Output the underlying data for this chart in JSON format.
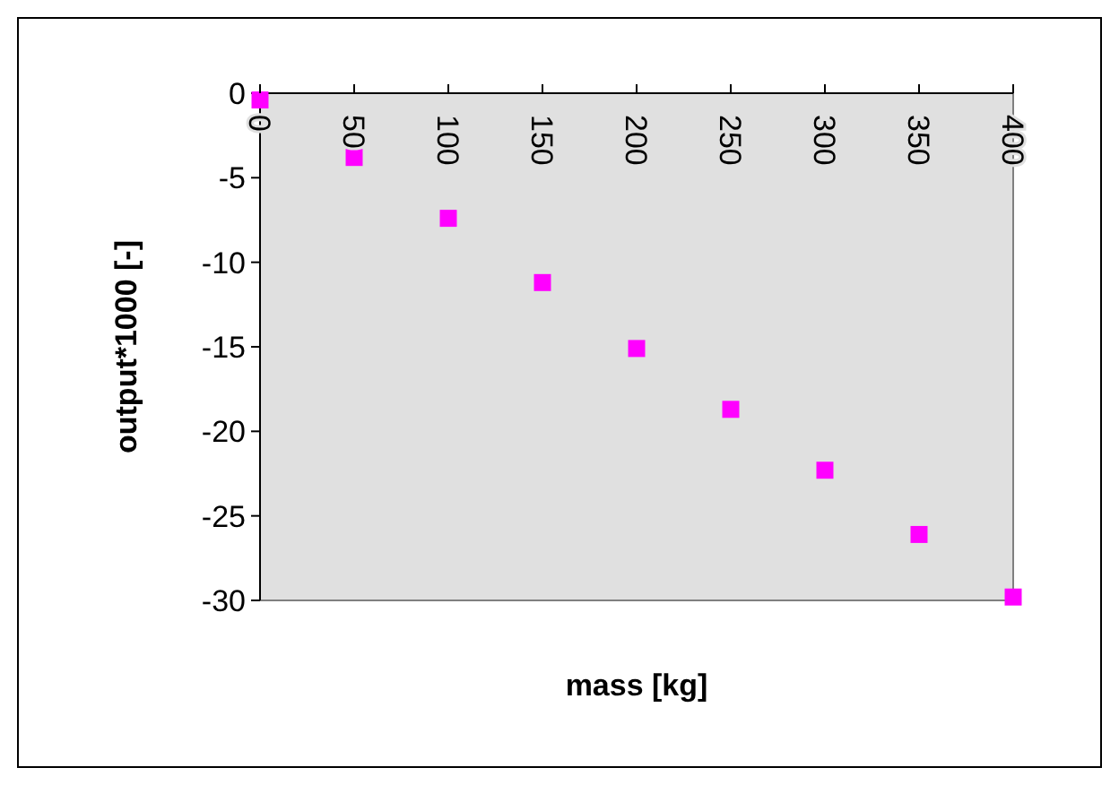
{
  "chart_data": {
    "type": "scatter",
    "xlabel": "mass [kg]",
    "ylabel": "output*1000 [-]",
    "x": [
      0,
      50,
      100,
      150,
      200,
      250,
      300,
      350,
      400
    ],
    "series": [
      {
        "color": "#ff00ff",
        "values": [
          -0.4,
          -3.8,
          -7.4,
          -11.2,
          -15.1,
          -18.7,
          -22.3,
          -26.1,
          -29.8
        ]
      }
    ],
    "xlim": [
      0,
      400
    ],
    "xticks": [
      0,
      50,
      100,
      150,
      200,
      250,
      300,
      350,
      400
    ],
    "ylim": [
      -30,
      0
    ],
    "yticks": [
      0,
      -5,
      -10,
      -15,
      -20,
      -25,
      -30
    ],
    "grid": false,
    "marker": "square"
  }
}
